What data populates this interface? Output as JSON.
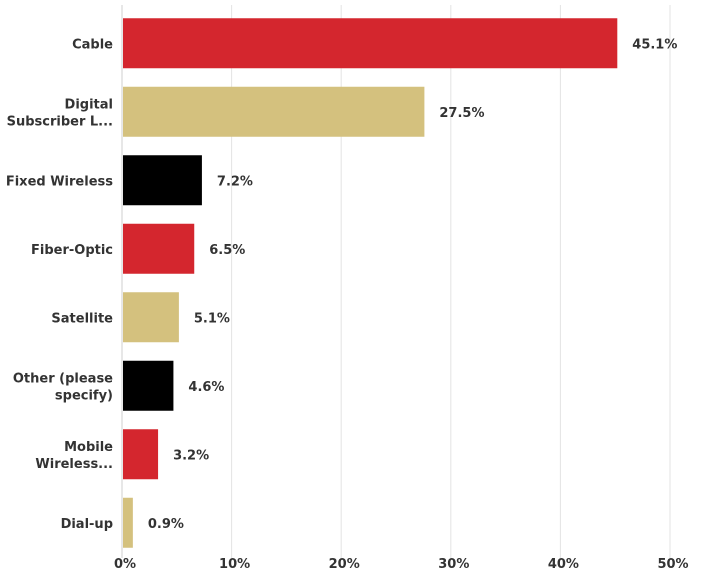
{
  "chart_data": {
    "type": "bar",
    "orientation": "horizontal",
    "categories": [
      [
        "Cable"
      ],
      [
        "Digital",
        "Subscriber L..."
      ],
      [
        "Fixed Wireless"
      ],
      [
        "Fiber-Optic"
      ],
      [
        "Satellite"
      ],
      [
        "Other (please",
        "specify)"
      ],
      [
        "Mobile",
        "Wireless..."
      ],
      [
        "Dial-up"
      ]
    ],
    "values": [
      45.1,
      27.5,
      7.2,
      6.5,
      5.1,
      4.6,
      3.2,
      0.9
    ],
    "value_labels": [
      "45.1%",
      "27.5%",
      "7.2%",
      "6.5%",
      "5.1%",
      "4.6%",
      "3.2%",
      "0.9%"
    ],
    "bar_colors": [
      "#d4262e",
      "#d4c17e",
      "#000000",
      "#d4262e",
      "#d4c17e",
      "#000000",
      "#d4262e",
      "#d4c17e"
    ],
    "xlim": [
      0,
      50
    ],
    "xticks": [
      0,
      10,
      20,
      30,
      40,
      50
    ],
    "xtick_labels": [
      "0%",
      "10%",
      "20%",
      "30%",
      "40%",
      "50%"
    ],
    "grid": true,
    "legend": "none"
  }
}
